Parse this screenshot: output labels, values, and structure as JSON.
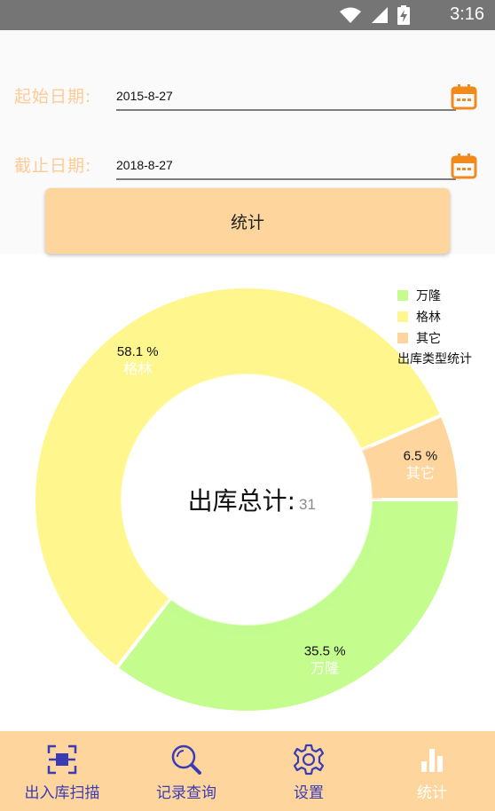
{
  "status_bar": {
    "time": "3:16"
  },
  "form": {
    "start_label": "起始日期:",
    "start_value": "2015-8-27",
    "end_label": "截止日期:",
    "end_value": "2018-8-27",
    "submit_label": "统计"
  },
  "chart_data": {
    "type": "pie",
    "donut": true,
    "slices": [
      {
        "label": "万隆",
        "value": 35.5,
        "percent_text": "35.5 %",
        "color": "#c4fc8e"
      },
      {
        "label": "格林",
        "value": 58.1,
        "percent_text": "58.1 %",
        "color": "#fff68e"
      },
      {
        "label": "其它",
        "value": 6.5,
        "percent_text": "6.5 %",
        "color": "#fdd59d"
      }
    ],
    "center_label": "出库总计:",
    "center_value": "31",
    "description": "出库类型统计",
    "legend_position": "top-right"
  },
  "tabs": [
    {
      "label": "出入库扫描",
      "icon": "scan-icon",
      "active": false
    },
    {
      "label": "记录查询",
      "icon": "search-icon",
      "active": false
    },
    {
      "label": "设置",
      "icon": "gear-icon",
      "active": false
    },
    {
      "label": "统计",
      "icon": "bar-chart-icon",
      "active": true
    }
  ],
  "colors": {
    "accent": "#fdd59d",
    "label": "#ffcb95",
    "tab_text": "#3a3bb5",
    "calendar": "#f08a1c"
  }
}
